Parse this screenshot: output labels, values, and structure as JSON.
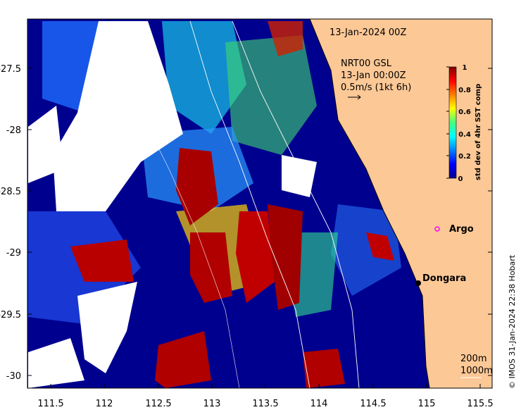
{
  "map": {
    "date_title": "13-Jan-2024 00Z",
    "product": "NRT00 GSL",
    "time_label": "13-Jan 00:00Z",
    "vector_scale_label": "0.5m/s (1kt 6h)",
    "x_ticks": [
      "111.5",
      "112",
      "112.5",
      "113",
      "113.5",
      "114",
      "114.5",
      "115",
      "115.5"
    ],
    "y_ticks": [
      "-27.5",
      "-28",
      "-28.5",
      "-29",
      "-29.5",
      "-30"
    ],
    "colorbar": {
      "title": "std dev of 4hr SST comp",
      "ticks": [
        "1",
        "0.8",
        "0.6",
        "0.4",
        "0.2",
        "0"
      ]
    },
    "argo_label": "Argo",
    "place_label": "Dongara",
    "contour_legend": [
      "200m",
      "1000m"
    ],
    "credit": "© IMOS 31-Jan-2024 22:38 Hobart",
    "colors": {
      "land": "#fcc896",
      "argo_marker": "#ff00ff",
      "high": "#a80000",
      "low": "#00008f"
    }
  }
}
